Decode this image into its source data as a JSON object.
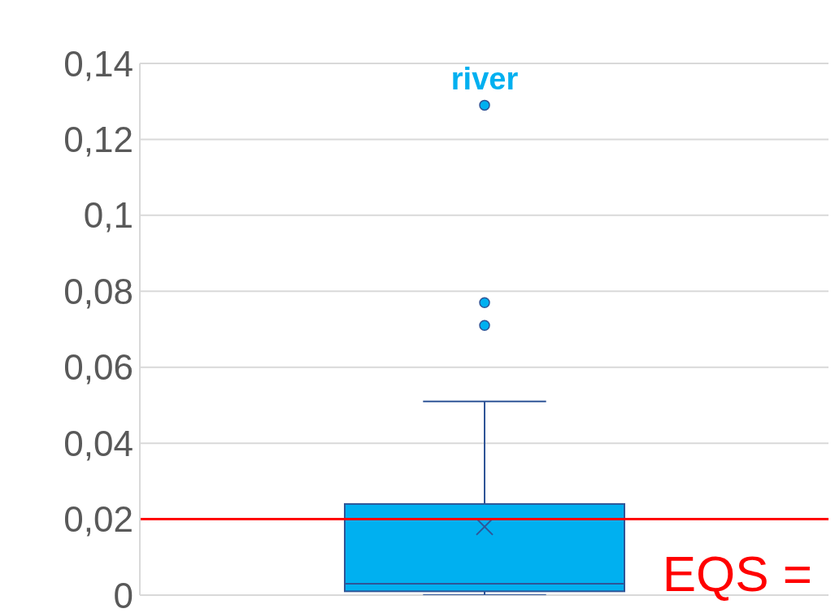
{
  "chart_data": {
    "type": "box",
    "categories": [
      null
    ],
    "series": [
      {
        "name": "river",
        "color": "#00b0f0",
        "boxes": [
          {
            "low": 0,
            "q1": 0.001,
            "median": 0.003,
            "q3": 0.024,
            "high": 0.051,
            "mean": 0.018,
            "outliers": [
              0.071,
              0.077,
              0.129
            ]
          }
        ]
      }
    ],
    "ylim": [
      0,
      0.14
    ],
    "yticks": [
      {
        "value": 0,
        "label": "0"
      },
      {
        "value": 0.02,
        "label": "0,02"
      },
      {
        "value": 0.04,
        "label": "0,04"
      },
      {
        "value": 0.06,
        "label": "0,06"
      },
      {
        "value": 0.08,
        "label": "0,08"
      },
      {
        "value": 0.1,
        "label": "0,1"
      },
      {
        "value": 0.12,
        "label": "0,12"
      },
      {
        "value": 0.14,
        "label": "0,14"
      }
    ],
    "grid": "y",
    "ref_lines": [
      {
        "axis": "y",
        "value": 0.02,
        "label": "EQS =",
        "color": "#ff0000"
      }
    ]
  }
}
